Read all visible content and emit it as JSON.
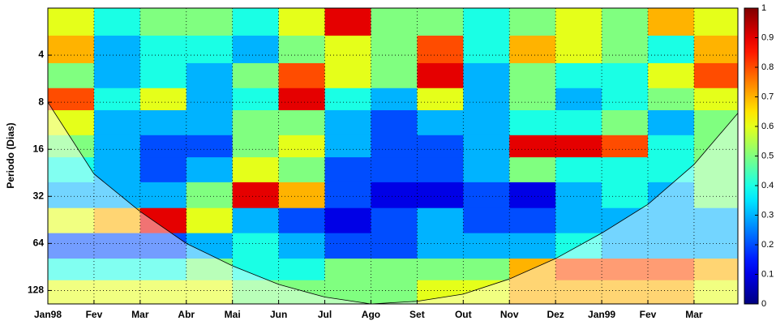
{
  "chart_data": {
    "type": "heatmap",
    "y_label": "Periodo (Dias)",
    "x_bins": [
      0,
      1,
      2,
      3,
      4,
      5,
      6,
      7,
      8,
      9,
      10,
      11,
      12,
      13,
      14,
      14.95
    ],
    "y_bins": [
      2,
      3,
      4.5,
      6.5,
      9,
      13,
      18,
      26,
      38,
      55,
      80,
      110,
      156
    ],
    "z": [
      [
        0.6,
        0.4,
        0.5,
        0.5,
        0.4,
        0.6,
        0.9,
        0.5,
        0.5,
        0.4,
        0.5,
        0.6,
        0.5,
        0.7,
        0.6
      ],
      [
        0.7,
        0.3,
        0.4,
        0.4,
        0.3,
        0.5,
        0.6,
        0.5,
        0.8,
        0.4,
        0.7,
        0.6,
        0.5,
        0.4,
        0.7
      ],
      [
        0.5,
        0.3,
        0.4,
        0.3,
        0.5,
        0.8,
        0.6,
        0.5,
        0.9,
        0.3,
        0.5,
        0.4,
        0.4,
        0.6,
        0.8
      ],
      [
        0.8,
        0.4,
        0.6,
        0.3,
        0.4,
        0.9,
        0.4,
        0.3,
        0.6,
        0.3,
        0.5,
        0.3,
        0.4,
        0.5,
        0.6
      ],
      [
        0.6,
        0.3,
        0.3,
        0.3,
        0.5,
        0.5,
        0.3,
        0.2,
        0.3,
        0.3,
        0.4,
        0.4,
        0.5,
        0.3,
        0.5
      ],
      [
        0.5,
        0.3,
        0.2,
        0.2,
        0.5,
        0.6,
        0.3,
        0.2,
        0.2,
        0.3,
        0.9,
        0.9,
        0.8,
        0.4,
        0.5
      ],
      [
        0.4,
        0.3,
        0.2,
        0.3,
        0.6,
        0.5,
        0.2,
        0.2,
        0.2,
        0.3,
        0.5,
        0.4,
        0.4,
        0.4,
        0.5
      ],
      [
        0.3,
        0.3,
        0.3,
        0.5,
        0.9,
        0.7,
        0.2,
        0.1,
        0.1,
        0.2,
        0.1,
        0.3,
        0.4,
        0.3,
        0.5
      ],
      [
        0.6,
        0.7,
        0.9,
        0.6,
        0.3,
        0.2,
        0.1,
        0.2,
        0.3,
        0.2,
        0.2,
        0.3,
        0.3,
        0.3,
        0.3
      ],
      [
        0.2,
        0.2,
        0.2,
        0.3,
        0.4,
        0.3,
        0.2,
        0.2,
        0.3,
        0.3,
        0.3,
        0.4,
        0.3,
        0.3,
        0.3
      ],
      [
        0.4,
        0.4,
        0.4,
        0.5,
        0.4,
        0.4,
        0.5,
        0.5,
        0.5,
        0.5,
        0.7,
        0.8,
        0.8,
        0.8,
        0.7
      ],
      [
        0.6,
        0.6,
        0.6,
        0.6,
        0.5,
        0.5,
        0.5,
        0.5,
        0.6,
        0.6,
        0.7,
        0.7,
        0.7,
        0.7,
        0.6
      ]
    ],
    "coi": {
      "x": [
        0,
        1,
        2,
        3,
        4,
        5,
        6,
        7,
        8,
        9,
        10,
        11,
        12,
        13,
        14,
        14.95
      ],
      "y": [
        8,
        23,
        40,
        64,
        89,
        117,
        141,
        156,
        150,
        135,
        108,
        80,
        55,
        36,
        20,
        9.4
      ]
    },
    "xlim": [
      0,
      14.95
    ],
    "ylim": [
      2,
      156
    ],
    "y_log": true,
    "y_reversed": true,
    "xticks": [
      {
        "value": 0,
        "label": "Jan98"
      },
      {
        "value": 1,
        "label": "Fev"
      },
      {
        "value": 2,
        "label": "Mar"
      },
      {
        "value": 3,
        "label": "Abr"
      },
      {
        "value": 4,
        "label": "Mai"
      },
      {
        "value": 5,
        "label": "Jun"
      },
      {
        "value": 6,
        "label": "Jul"
      },
      {
        "value": 7,
        "label": "Ago"
      },
      {
        "value": 8,
        "label": "Set"
      },
      {
        "value": 9,
        "label": "Out"
      },
      {
        "value": 10,
        "label": "Nov"
      },
      {
        "value": 11,
        "label": "Dez"
      },
      {
        "value": 12,
        "label": "Jan99"
      },
      {
        "value": 13,
        "label": "Fev"
      },
      {
        "value": 14,
        "label": "Mar"
      }
    ],
    "yticks": [
      4,
      8,
      16,
      32,
      64,
      128
    ],
    "grid": true,
    "colorbar": {
      "lim": [
        0,
        1
      ],
      "ticks": [
        0,
        0.1,
        0.2,
        0.3,
        0.4,
        0.5,
        0.6,
        0.7,
        0.8,
        0.9,
        1
      ]
    }
  }
}
